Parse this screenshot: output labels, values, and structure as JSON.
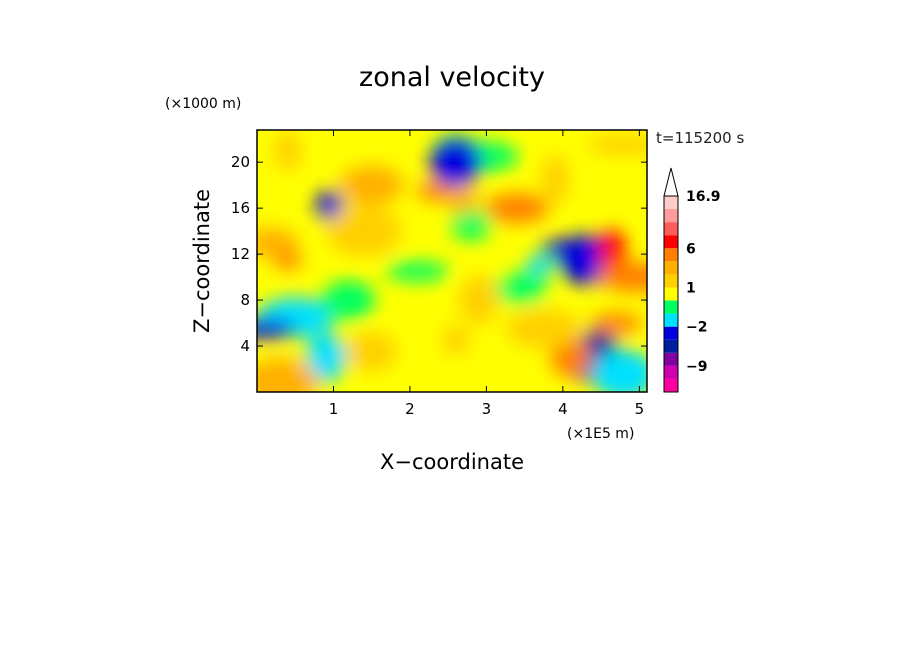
{
  "chart_data": {
    "type": "heatmap",
    "title": "zonal velocity",
    "xlabel": "X−coordinate",
    "ylabel": "Z−coordinate",
    "x_unit_label": "(×1E5 m)",
    "y_unit_label": "(×1000 m)",
    "time_label": "t=115200 s",
    "xlim": [
      0.0,
      5.1
    ],
    "ylim": [
      0.0,
      22.8
    ],
    "x_ticks": [
      1,
      2,
      3,
      4,
      5
    ],
    "x_tick_labels": [
      "1",
      "2",
      "3",
      "4",
      "5"
    ],
    "y_ticks": [
      4,
      8,
      12,
      16,
      20
    ],
    "y_tick_labels": [
      "4",
      "8",
      "12",
      "16",
      "20"
    ],
    "colorbar": {
      "levels": [
        -16,
        -12,
        -9,
        -6,
        -4,
        -2,
        -1,
        0,
        1,
        2,
        3,
        6,
        8,
        12,
        16.9
      ],
      "colors": [
        "#ff00a0",
        "#d000b0",
        "#8000a0",
        "#0020a0",
        "#0000e0",
        "#00e0ff",
        "#00ff60",
        "#ffff00",
        "#ffd000",
        "#ffb000",
        "#ff8000",
        "#ff0000",
        "#ff5c5c",
        "#ff9c9c",
        "#ffcccc"
      ],
      "tick_labels": [
        {
          "text": "16.9",
          "value": 16.9
        },
        {
          "text": "6",
          "value": 6
        },
        {
          "text": "1",
          "value": 1
        },
        {
          "text": "−2",
          "value": -2
        },
        {
          "text": "−9",
          "value": -9
        }
      ],
      "extend": "max"
    },
    "features": [
      {
        "x": 0.4,
        "z": 11.5,
        "u": 3
      },
      {
        "x": 0.2,
        "z": 13,
        "u": 2
      },
      {
        "x": 0.5,
        "z": 6.5,
        "u": -2
      },
      {
        "x": 0.9,
        "z": 3,
        "u": -2
      },
      {
        "x": 0.1,
        "z": 5.5,
        "u": -4
      },
      {
        "x": 0.95,
        "z": 16.2,
        "u": -4
      },
      {
        "x": 1.2,
        "z": 8,
        "u": -1
      },
      {
        "x": 1.4,
        "z": 14,
        "u": 1
      },
      {
        "x": 2.35,
        "z": 17.5,
        "u": 3
      },
      {
        "x": 3.4,
        "z": 16,
        "u": 3
      },
      {
        "x": 2.7,
        "z": 16.5,
        "u": 2
      },
      {
        "x": 4.3,
        "z": 11.5,
        "u": -4
      },
      {
        "x": 4.2,
        "z": 12.5,
        "u": -4
      },
      {
        "x": 4.45,
        "z": 4,
        "u": -6
      },
      {
        "x": 4.45,
        "z": 2.5,
        "u": -6
      },
      {
        "x": 4.65,
        "z": 12,
        "u": 6
      },
      {
        "x": 4.7,
        "z": 6,
        "u": 3
      },
      {
        "x": 4.95,
        "z": 10,
        "u": 3
      },
      {
        "x": 4.1,
        "z": 3,
        "u": 3
      },
      {
        "x": 4.8,
        "z": 1.5,
        "u": -2
      },
      {
        "x": 3.7,
        "z": 11,
        "u": -2
      },
      {
        "x": 3.45,
        "z": 9,
        "u": -1
      },
      {
        "x": 3.75,
        "z": 5.5,
        "u": 1
      },
      {
        "x": 2.9,
        "z": 8,
        "u": 1
      },
      {
        "x": 2.1,
        "z": 10.5,
        "u": -1
      },
      {
        "x": 2.6,
        "z": 4.5,
        "u": 1
      },
      {
        "x": 1.5,
        "z": 3.5,
        "u": 1
      },
      {
        "x": 0.3,
        "z": 0.8,
        "u": 2
      },
      {
        "x": 2.6,
        "z": 21.5,
        "u": -1
      },
      {
        "x": 3.0,
        "z": 20.5,
        "u": -1
      },
      {
        "x": 0.4,
        "z": 21,
        "u": 1
      },
      {
        "x": 2.6,
        "z": 20,
        "u": -4
      },
      {
        "x": 4.8,
        "z": 21.5,
        "u": 1
      },
      {
        "x": 2.8,
        "z": 14.5,
        "u": -1
      },
      {
        "x": 1.5,
        "z": 18,
        "u": 2
      },
      {
        "x": 3.9,
        "z": 18.5,
        "u": 1
      }
    ]
  }
}
